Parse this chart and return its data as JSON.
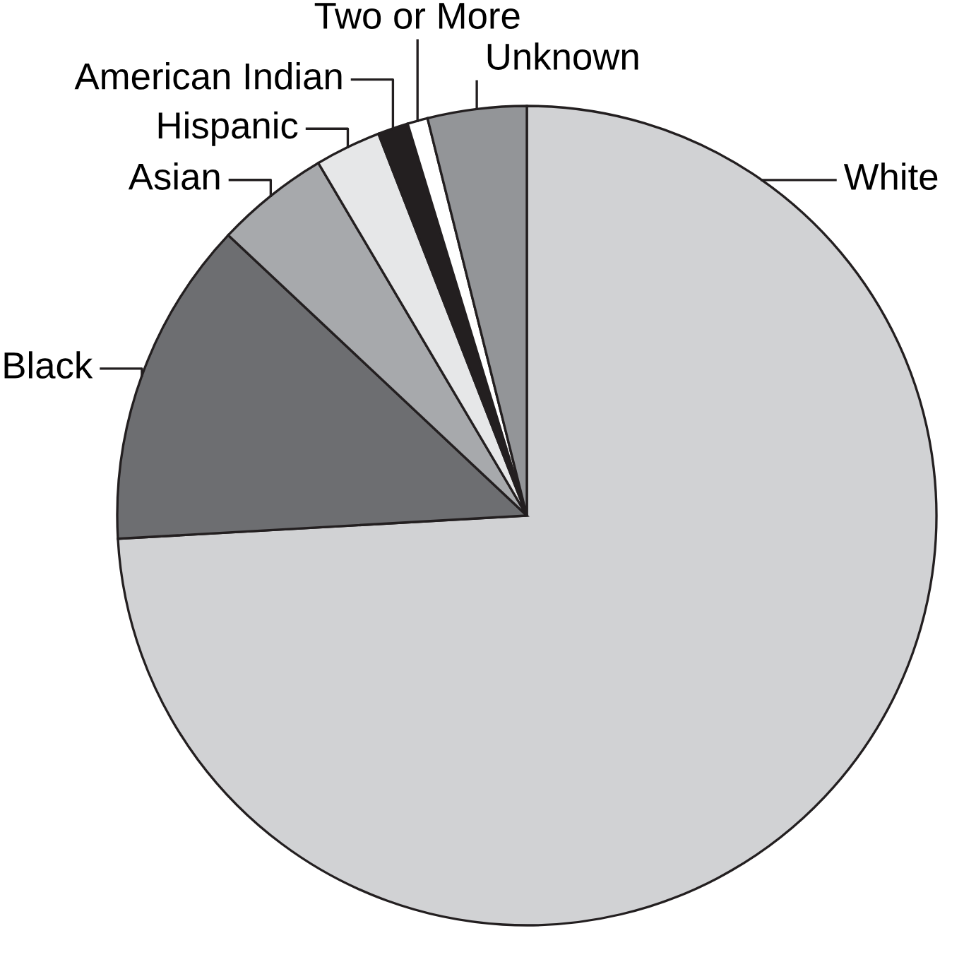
{
  "chart_data": {
    "type": "pie",
    "categories": [
      "White",
      "Black",
      "Asian",
      "Hispanic",
      "American Indian",
      "Two or More",
      "Unknown"
    ],
    "values": [
      74.1,
      12.9,
      4.5,
      2.6,
      1.2,
      0.8,
      3.9
    ],
    "colors": [
      "#d1d2d4",
      "#6d6e71",
      "#a7a9ac",
      "#e6e7e8",
      "#231f20",
      "#ffffff",
      "#939598"
    ],
    "legend": false
  }
}
